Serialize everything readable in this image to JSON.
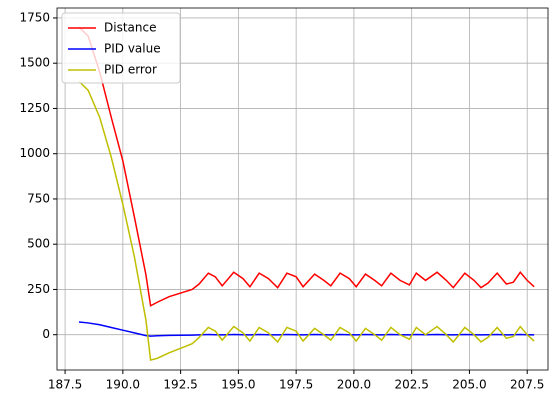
{
  "chart_data": {
    "type": "line",
    "x": [
      188.1,
      188.5,
      189.0,
      189.5,
      190.0,
      190.5,
      191.0,
      191.2,
      191.5,
      192.0,
      192.5,
      193.0,
      193.3,
      193.7,
      194.0,
      194.3,
      194.8,
      195.2,
      195.5,
      195.9,
      196.3,
      196.7,
      197.1,
      197.5,
      197.8,
      198.3,
      198.7,
      199.0,
      199.4,
      199.8,
      200.1,
      200.5,
      200.9,
      201.2,
      201.6,
      202.0,
      202.4,
      202.7,
      203.1,
      203.6,
      204.0,
      204.3,
      204.8,
      205.2,
      205.5,
      205.8,
      206.2,
      206.6,
      206.9,
      207.2,
      207.5,
      207.8
    ],
    "series": [
      {
        "name": "Distance",
        "color": "#ff0000",
        "values": [
          1700,
          1650,
          1450,
          1200,
          960,
          650,
          330,
          160,
          180,
          210,
          230,
          250,
          280,
          340,
          320,
          270,
          345,
          310,
          265,
          340,
          310,
          260,
          340,
          320,
          265,
          335,
          300,
          270,
          340,
          310,
          265,
          335,
          300,
          270,
          340,
          300,
          275,
          340,
          300,
          345,
          300,
          260,
          340,
          300,
          260,
          285,
          340,
          280,
          290,
          345,
          300,
          265
        ]
      },
      {
        "name": "PID value",
        "color": "#0000ff",
        "values": [
          70,
          65,
          55,
          40,
          25,
          10,
          -5,
          -8,
          -6,
          -4,
          -3,
          -2,
          -1,
          1,
          0,
          -1,
          1,
          0,
          -1,
          1,
          0,
          -1,
          1,
          0,
          -1,
          1,
          0,
          -1,
          1,
          0,
          -1,
          1,
          0,
          -1,
          1,
          0,
          -1,
          1,
          0,
          1,
          0,
          -1,
          1,
          0,
          -1,
          0,
          1,
          -1,
          0,
          1,
          0,
          -1
        ]
      },
      {
        "name": "PID error",
        "color": "#bfbf00",
        "values": [
          1400,
          1350,
          1200,
          980,
          720,
          430,
          80,
          -140,
          -130,
          -100,
          -75,
          -50,
          -15,
          40,
          20,
          -30,
          45,
          10,
          -35,
          40,
          10,
          -40,
          40,
          20,
          -35,
          35,
          0,
          -30,
          40,
          10,
          -35,
          35,
          0,
          -30,
          40,
          0,
          -25,
          40,
          0,
          45,
          0,
          -40,
          40,
          0,
          -40,
          -15,
          40,
          -20,
          -10,
          45,
          0,
          -35
        ]
      }
    ],
    "xlim": [
      187.15,
      208.4
    ],
    "ylim": [
      -195,
      1805
    ],
    "xticks": [
      187.5,
      {
        "value": 190,
        "label": "190.0"
      },
      192.5,
      {
        "value": 195,
        "label": "195.0"
      },
      197.5,
      {
        "value": 200,
        "label": "200.0"
      },
      202.5,
      {
        "value": 205,
        "label": "205.0"
      },
      207.5
    ],
    "yticks": [
      0,
      250,
      500,
      750,
      1000,
      1250,
      1500,
      1750
    ],
    "grid": true,
    "legend": "upper-left"
  }
}
